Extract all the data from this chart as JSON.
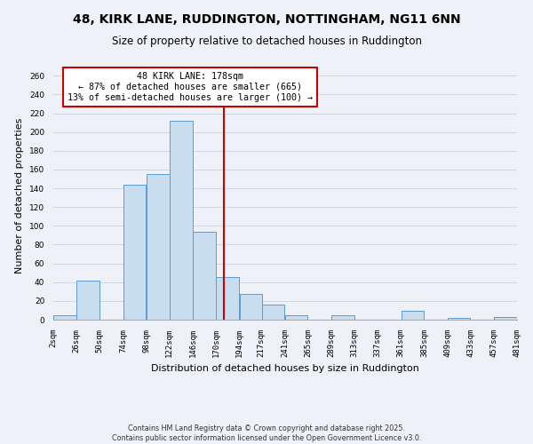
{
  "title": "48, KIRK LANE, RUDDINGTON, NOTTINGHAM, NG11 6NN",
  "subtitle": "Size of property relative to detached houses in Ruddington",
  "xlabel": "Distribution of detached houses by size in Ruddington",
  "ylabel": "Number of detached properties",
  "bin_labels": [
    "2sqm",
    "26sqm",
    "50sqm",
    "74sqm",
    "98sqm",
    "122sqm",
    "146sqm",
    "170sqm",
    "194sqm",
    "217sqm",
    "241sqm",
    "265sqm",
    "289sqm",
    "313sqm",
    "337sqm",
    "361sqm",
    "385sqm",
    "409sqm",
    "433sqm",
    "457sqm",
    "481sqm"
  ],
  "bin_edges": [
    2,
    26,
    50,
    74,
    98,
    122,
    146,
    170,
    194,
    217,
    241,
    265,
    289,
    313,
    337,
    361,
    385,
    409,
    433,
    457,
    481
  ],
  "bar_heights": [
    5,
    42,
    0,
    144,
    155,
    212,
    94,
    45,
    27,
    16,
    5,
    0,
    5,
    0,
    0,
    9,
    0,
    2,
    0,
    3
  ],
  "bar_color": "#c8ddf0",
  "bar_edge_color": "#5b9bd5",
  "grid_color": "#d0d8e8",
  "background_color": "#eef2f8",
  "vline_x": 178,
  "vline_color": "#cc0000",
  "annotation_text": "48 KIRK LANE: 178sqm\n← 87% of detached houses are smaller (665)\n13% of semi-detached houses are larger (100) →",
  "annotation_box_color": "#cc0000",
  "annotation_bg": "#ffffff",
  "ylim": [
    0,
    265
  ],
  "yticks": [
    0,
    20,
    40,
    60,
    80,
    100,
    120,
    140,
    160,
    180,
    200,
    220,
    240,
    260
  ],
  "footer_line1": "Contains HM Land Registry data © Crown copyright and database right 2025.",
  "footer_line2": "Contains public sector information licensed under the Open Government Licence v3.0.",
  "title_fontsize": 10,
  "subtitle_fontsize": 8.5,
  "axis_label_fontsize": 8,
  "tick_fontsize": 6.5,
  "ann_fontsize": 7.2
}
